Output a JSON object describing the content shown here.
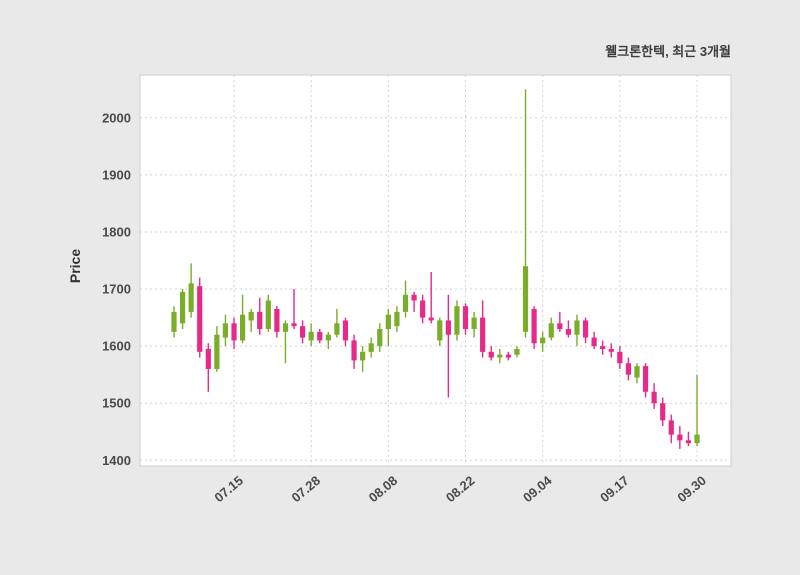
{
  "colors": {
    "up": "#7aad2a",
    "down": "#e7298a",
    "figure_bg": "#e9e9e9",
    "plot_bg": "#ffffff",
    "plot_border": "#cfcfcf",
    "grid": "#d4d4d4",
    "tick_text": "#4a4a4a",
    "title_text": "#3c3c3c"
  },
  "chart_data": {
    "type": "candlestick",
    "title": "웰크론한텍, 최근 3개월",
    "ylabel": "Price",
    "xlabel": "",
    "ylim": [
      1390,
      2075
    ],
    "yticks": [
      1400,
      1500,
      1600,
      1700,
      1800,
      1900,
      2000
    ],
    "xtick_indices": [
      7,
      16,
      25,
      34,
      43,
      52,
      61
    ],
    "xtick_labels": [
      "07.15",
      "07.28",
      "08.08",
      "08.22",
      "09.04",
      "09.17",
      "09.30"
    ],
    "grid": "dashed",
    "legend": "none",
    "columns": [
      "date",
      "open",
      "high",
      "low",
      "close"
    ],
    "candles": [
      [
        "07.04",
        1625,
        1670,
        1615,
        1660
      ],
      [
        "07.05",
        1640,
        1700,
        1630,
        1695
      ],
      [
        "07.08",
        1660,
        1745,
        1650,
        1710
      ],
      [
        "07.09",
        1705,
        1720,
        1580,
        1590
      ],
      [
        "07.10",
        1595,
        1605,
        1520,
        1560
      ],
      [
        "07.11",
        1560,
        1635,
        1555,
        1620
      ],
      [
        "07.12",
        1615,
        1655,
        1600,
        1640
      ],
      [
        "07.15",
        1640,
        1650,
        1595,
        1610
      ],
      [
        "07.16",
        1610,
        1690,
        1605,
        1655
      ],
      [
        "07.17",
        1645,
        1665,
        1625,
        1660
      ],
      [
        "07.18",
        1660,
        1685,
        1620,
        1630
      ],
      [
        "07.19",
        1630,
        1690,
        1625,
        1680
      ],
      [
        "07.22",
        1665,
        1670,
        1615,
        1625
      ],
      [
        "07.23",
        1625,
        1645,
        1570,
        1640
      ],
      [
        "07.24",
        1640,
        1700,
        1630,
        1635
      ],
      [
        "07.25",
        1635,
        1645,
        1605,
        1615
      ],
      [
        "07.28",
        1610,
        1640,
        1600,
        1625
      ],
      [
        "07.29",
        1625,
        1630,
        1605,
        1610
      ],
      [
        "07.30",
        1610,
        1625,
        1595,
        1620
      ],
      [
        "07.31",
        1620,
        1665,
        1615,
        1640
      ],
      [
        "08.01",
        1645,
        1650,
        1600,
        1610
      ],
      [
        "08.02",
        1610,
        1620,
        1560,
        1575
      ],
      [
        "08.05",
        1575,
        1600,
        1555,
        1590
      ],
      [
        "08.06",
        1590,
        1615,
        1580,
        1605
      ],
      [
        "08.07",
        1600,
        1640,
        1590,
        1630
      ],
      [
        "08.08",
        1630,
        1665,
        1600,
        1655
      ],
      [
        "08.09",
        1635,
        1670,
        1625,
        1660
      ],
      [
        "08.12",
        1660,
        1715,
        1650,
        1690
      ],
      [
        "08.13",
        1690,
        1695,
        1660,
        1680
      ],
      [
        "08.14",
        1680,
        1690,
        1640,
        1650
      ],
      [
        "08.16",
        1650,
        1730,
        1640,
        1645
      ],
      [
        "08.19",
        1610,
        1650,
        1600,
        1645
      ],
      [
        "08.20",
        1645,
        1690,
        1510,
        1620
      ],
      [
        "08.21",
        1620,
        1680,
        1610,
        1670
      ],
      [
        "08.22",
        1670,
        1675,
        1620,
        1630
      ],
      [
        "08.23",
        1630,
        1660,
        1615,
        1650
      ],
      [
        "08.26",
        1650,
        1680,
        1580,
        1590
      ],
      [
        "08.27",
        1590,
        1600,
        1575,
        1580
      ],
      [
        "08.28",
        1580,
        1595,
        1570,
        1585
      ],
      [
        "08.29",
        1585,
        1590,
        1575,
        1580
      ],
      [
        "08.30",
        1585,
        1600,
        1580,
        1595
      ],
      [
        "09.02",
        1625,
        2050,
        1615,
        1740
      ],
      [
        "09.03",
        1665,
        1670,
        1595,
        1605
      ],
      [
        "09.04",
        1605,
        1625,
        1590,
        1615
      ],
      [
        "09.05",
        1615,
        1650,
        1610,
        1640
      ],
      [
        "09.06",
        1640,
        1660,
        1625,
        1630
      ],
      [
        "09.09",
        1630,
        1645,
        1615,
        1620
      ],
      [
        "09.10",
        1620,
        1655,
        1600,
        1645
      ],
      [
        "09.11",
        1645,
        1650,
        1605,
        1615
      ],
      [
        "09.12",
        1615,
        1625,
        1595,
        1600
      ],
      [
        "09.13",
        1600,
        1610,
        1585,
        1595
      ],
      [
        "09.16",
        1595,
        1605,
        1580,
        1590
      ],
      [
        "09.17",
        1590,
        1600,
        1560,
        1570
      ],
      [
        "09.18",
        1570,
        1580,
        1540,
        1550
      ],
      [
        "09.19",
        1545,
        1570,
        1535,
        1565
      ],
      [
        "09.20",
        1565,
        1570,
        1510,
        1520
      ],
      [
        "09.23",
        1520,
        1535,
        1490,
        1500
      ],
      [
        "09.24",
        1500,
        1510,
        1460,
        1470
      ],
      [
        "09.25",
        1470,
        1480,
        1430,
        1445
      ],
      [
        "09.26",
        1445,
        1460,
        1420,
        1435
      ],
      [
        "09.27",
        1435,
        1450,
        1425,
        1430
      ],
      [
        "09.30",
        1430,
        1550,
        1425,
        1445
      ]
    ]
  }
}
